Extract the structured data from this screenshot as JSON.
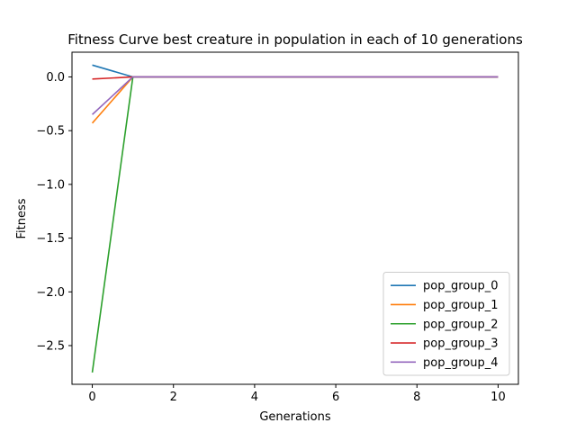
{
  "chart_data": {
    "type": "line",
    "title": "Fitness Curve best creature in population in each of 10 generations",
    "xlabel": "Generations",
    "ylabel": "Fitness",
    "xlim": [
      -0.5,
      10.5
    ],
    "ylim": [
      -2.86,
      0.23
    ],
    "xticks": [
      0,
      2,
      4,
      6,
      8,
      10
    ],
    "yticks": [
      0.0,
      -0.5,
      -1.0,
      -1.5,
      -2.0,
      -2.5
    ],
    "ytick_labels": [
      "0.0",
      "−0.5",
      "−1.0",
      "−1.5",
      "−2.0",
      "−2.5"
    ],
    "grid": false,
    "legend_position": "lower-right",
    "x": [
      0,
      1,
      2,
      3,
      4,
      5,
      6,
      7,
      8,
      9,
      10
    ],
    "series": [
      {
        "name": "pop_group_0",
        "color": "#1f77b4",
        "values": [
          0.11,
          0.0,
          0.0,
          0.0,
          0.0,
          0.0,
          0.0,
          0.0,
          0.0,
          0.0,
          0.0
        ]
      },
      {
        "name": "pop_group_1",
        "color": "#ff7f0e",
        "values": [
          -0.43,
          0.0,
          0.0,
          0.0,
          0.0,
          0.0,
          0.0,
          0.0,
          0.0,
          0.0,
          0.0
        ]
      },
      {
        "name": "pop_group_2",
        "color": "#2ca02c",
        "values": [
          -2.75,
          0.0,
          0.0,
          0.0,
          0.0,
          0.0,
          0.0,
          0.0,
          0.0,
          0.0,
          0.0
        ]
      },
      {
        "name": "pop_group_3",
        "color": "#d62728",
        "values": [
          -0.02,
          0.0,
          0.0,
          0.0,
          0.0,
          0.0,
          0.0,
          0.0,
          0.0,
          0.0,
          0.0
        ]
      },
      {
        "name": "pop_group_4",
        "color": "#9467bd",
        "values": [
          -0.35,
          0.0,
          0.0,
          0.0,
          0.0,
          0.0,
          0.0,
          0.0,
          0.0,
          0.0,
          0.0
        ]
      }
    ]
  }
}
